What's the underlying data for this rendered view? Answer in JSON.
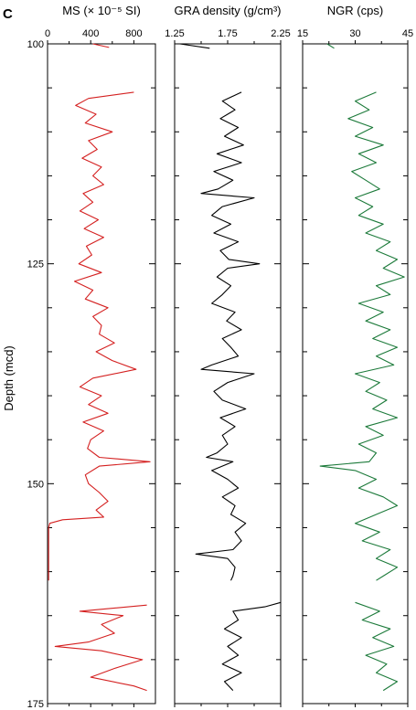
{
  "figure": {
    "panel_label": "C"
  },
  "chart_data": {
    "type": "line",
    "ylabel": "Depth (mcd)",
    "ylim": [
      100,
      175
    ],
    "yticks": [
      100,
      125,
      150,
      175
    ],
    "y_minor_step": 5,
    "y_reversed": true,
    "legend": "none",
    "grid": false,
    "panels": [
      {
        "title": "MS (× 10⁻⁵ SI)",
        "xlim": [
          0,
          1000
        ],
        "xticks": [
          0,
          400,
          800
        ],
        "xtick_labels": [
          "0",
          "400",
          "800"
        ],
        "color": "#d42020",
        "segments": [
          {
            "depth": [
              100.0,
              100.4
            ],
            "values": [
              420,
              570
            ]
          },
          {
            "depth": [
              105.5,
              106.2,
              107.0,
              108.0,
              109.0,
              110.0,
              111.0,
              112.0,
              113.0,
              114.0,
              115.0,
              116.0,
              117.0,
              118.0,
              119.0,
              120.0,
              121.0,
              122.0,
              123.0,
              124.0,
              125.0,
              126.0,
              127.0,
              128.0,
              129.0,
              130.0,
              131.0,
              132.0,
              133.0,
              134.0,
              135.0,
              136.0,
              137.0,
              138.0,
              139.0,
              140.0,
              141.0,
              142.0,
              143.0,
              144.0,
              145.0,
              146.0,
              147.0,
              147.5,
              148.0,
              149.0,
              150.0,
              151.0,
              152.0,
              153.0,
              153.8,
              154.1,
              154.5,
              155.0,
              158.0,
              161.0
            ],
            "values": [
              800,
              380,
              260,
              450,
              350,
              600,
              380,
              460,
              320,
              500,
              420,
              520,
              330,
              420,
              300,
              470,
              340,
              520,
              360,
              410,
              290,
              500,
              250,
              420,
              350,
              560,
              420,
              500,
              480,
              620,
              450,
              600,
              820,
              420,
              300,
              500,
              380,
              560,
              330,
              520,
              400,
              370,
              480,
              950,
              480,
              350,
              380,
              480,
              560,
              450,
              520,
              140,
              20,
              10,
              10,
              10
            ]
          },
          {
            "depth": [
              163.8,
              164.5,
              165.0,
              166.0,
              167.0,
              168.0,
              168.5,
              169.0,
              170.0,
              171.0,
              172.0,
              173.0,
              173.5
            ],
            "values": [
              920,
              300,
              700,
              500,
              620,
              380,
              70,
              500,
              880,
              620,
              400,
              800,
              920
            ]
          }
        ]
      },
      {
        "title": "GRA density (g/cm³)",
        "xlim": [
          1.25,
          2.25
        ],
        "xticks": [
          1.25,
          1.75,
          2.25
        ],
        "xtick_labels": [
          "1.25",
          "1.75",
          "2.25"
        ],
        "color": "#000000",
        "segments": [
          {
            "depth": [
              100.0,
              100.5
            ],
            "values": [
              1.3,
              1.58
            ]
          },
          {
            "depth": [
              105.5,
              106.5,
              107.5,
              108.5,
              109.5,
              110.5,
              111.5,
              112.5,
              113.5,
              114.5,
              115.5,
              116.5,
              117.0,
              117.5,
              118.5,
              119.5,
              120.5,
              121.5,
              122.5,
              123.5,
              124.5,
              125.0,
              125.5,
              126.5,
              127.5,
              128.5,
              129.5,
              130.5,
              131.5,
              132.5,
              133.5,
              134.5,
              135.5,
              136.5,
              137.0,
              137.5,
              138.5,
              139.5,
              140.5,
              141.5,
              142.5,
              143.5,
              144.5,
              145.5,
              146.5,
              147.0,
              147.5,
              148.5,
              149.5,
              150.5,
              151.5,
              152.5,
              153.5,
              154.5,
              155.5,
              156.5,
              157.5,
              158.0,
              158.5,
              159.5,
              160.5,
              161.0
            ],
            "values": [
              1.88,
              1.7,
              1.82,
              1.68,
              1.85,
              1.72,
              1.9,
              1.65,
              1.88,
              1.62,
              1.8,
              1.66,
              1.5,
              2.0,
              1.7,
              1.6,
              1.78,
              1.62,
              1.85,
              1.68,
              1.76,
              2.05,
              1.75,
              1.65,
              1.78,
              1.7,
              1.6,
              1.82,
              1.74,
              1.88,
              1.7,
              1.78,
              1.85,
              1.6,
              1.5,
              2.0,
              1.75,
              1.62,
              1.7,
              1.92,
              1.68,
              1.82,
              1.7,
              1.75,
              1.65,
              1.55,
              1.8,
              1.6,
              1.75,
              1.85,
              1.7,
              1.82,
              1.78,
              1.92,
              1.82,
              1.88,
              1.8,
              1.45,
              1.75,
              1.82,
              1.8,
              1.78
            ]
          },
          {
            "depth": [
              163.5,
              164.0,
              164.5,
              165.5,
              166.5,
              167.5,
              168.5,
              169.5,
              170.5,
              171.5,
              172.5,
              173.5
            ],
            "values": [
              2.25,
              2.1,
              1.8,
              1.85,
              1.72,
              1.88,
              1.75,
              1.85,
              1.7,
              1.88,
              1.72,
              1.8
            ]
          }
        ]
      },
      {
        "title": "NGR (cps)",
        "xlim": [
          15,
          45
        ],
        "xticks": [
          15,
          30,
          45
        ],
        "xtick_labels": [
          "15",
          "30",
          "45"
        ],
        "color": "#1c7a3a",
        "segments": [
          {
            "depth": [
              100.0,
              100.5
            ],
            "values": [
              22,
              24
            ]
          },
          {
            "depth": [
              105.5,
              106.5,
              107.5,
              108.5,
              109.5,
              110.5,
              111.5,
              112.5,
              113.5,
              114.5,
              115.5,
              116.5,
              117.5,
              118.5,
              119.5,
              120.5,
              121.5,
              122.5,
              123.5,
              124.5,
              125.5,
              126.5,
              127.5,
              128.5,
              129.5,
              130.5,
              131.5,
              132.5,
              133.5,
              134.5,
              135.5,
              136.5,
              137.5,
              138.5,
              139.5,
              140.5,
              141.5,
              142.5,
              143.5,
              144.5,
              145.5,
              146.5,
              147.5,
              148.0,
              148.5,
              149.5,
              150.5,
              151.5,
              152.5,
              153.5,
              154.5,
              155.5,
              156.5,
              157.5,
              158.5,
              159.5,
              160.5,
              161.0
            ],
            "values": [
              36,
              30,
              34,
              28,
              35,
              30,
              38,
              31,
              36,
              29,
              33,
              37,
              30,
              35,
              31,
              38,
              33,
              40,
              36,
              42,
              38,
              44,
              36,
              40,
              31,
              38,
              33,
              40,
              35,
              42,
              36,
              41,
              30,
              37,
              33,
              39,
              35,
              42,
              33,
              38,
              31,
              36,
              34,
              20,
              30,
              36,
              31,
              38,
              42,
              36,
              30,
              37,
              32,
              40,
              36,
              42,
              38,
              36
            ]
          },
          {
            "depth": [
              163.5,
              164.5,
              165.5,
              166.5,
              167.5,
              168.5,
              169.5,
              170.5,
              171.5,
              172.5,
              173.5
            ],
            "values": [
              30,
              37,
              32,
              40,
              35,
              41,
              33,
              39,
              36,
              42,
              38
            ]
          }
        ]
      }
    ]
  }
}
